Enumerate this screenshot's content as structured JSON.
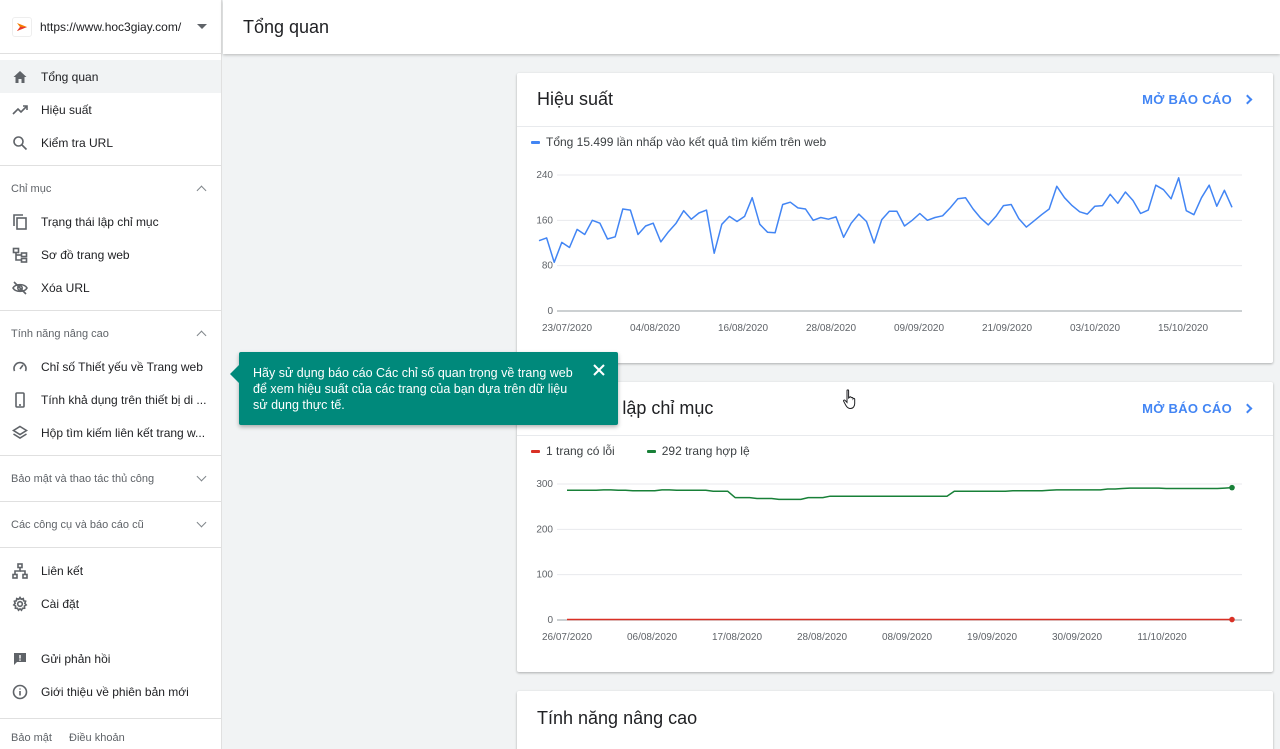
{
  "property": {
    "url": "https://www.hoc3giay.com/"
  },
  "header": {
    "title": "Tổng quan"
  },
  "sidebar": {
    "top_items": [
      {
        "label": "Tổng quan",
        "icon": "home-icon",
        "active": true
      },
      {
        "label": "Hiệu suất",
        "icon": "trending-up-icon"
      },
      {
        "label": "Kiểm tra URL",
        "icon": "search-icon"
      }
    ],
    "sections": {
      "index": "Chỉ mục",
      "enhancements": "Tính năng nâng cao",
      "security": "Bảo mật và thao tác thủ công",
      "legacy": "Các công cụ và báo cáo cũ"
    },
    "index_items": [
      {
        "label": "Trạng thái lập chỉ mục",
        "icon": "pages-icon"
      },
      {
        "label": "Sơ đồ trang web",
        "icon": "sitemap-icon"
      },
      {
        "label": "Xóa URL",
        "icon": "eye-off-icon"
      }
    ],
    "enhancement_items": [
      {
        "label": "Chỉ số Thiết yếu về Trang web",
        "icon": "speed-gauge-icon"
      },
      {
        "label": "Tính khả dụng trên thiết bị di ...",
        "icon": "smartphone-icon"
      },
      {
        "label": "Hộp tìm kiếm liên kết trang w...",
        "icon": "layers-icon"
      }
    ],
    "bottom_items": [
      {
        "label": "Liên kết",
        "icon": "links-icon"
      },
      {
        "label": "Cài đặt",
        "icon": "gear-icon"
      }
    ],
    "extra_items": [
      {
        "label": "Gửi phản hồi",
        "icon": "feedback-icon"
      },
      {
        "label": "Giới thiệu về phiên bản mới",
        "icon": "info-icon"
      }
    ],
    "footer": {
      "privacy": "Bảo mật",
      "terms": "Điều khoản"
    }
  },
  "tooltip": {
    "text": "Hãy sử dụng báo cáo Các chỉ số quan trọng về trang web để xem hiệu suất của các trang của bạn dựa trên dữ liệu sử dụng thực tế."
  },
  "cards": {
    "performance": {
      "title": "Hiệu suất",
      "open_label": "MỞ BÁO CÁO"
    },
    "coverage": {
      "title": "Trạng thái lập chỉ mục",
      "open_label": "MỞ BÁO CÁO"
    },
    "enhancements": {
      "title": "Tính năng nâng cao"
    }
  },
  "colors": {
    "accent": "#4285f4",
    "tooltip": "#00897b",
    "error": "#d93025",
    "valid": "#188038"
  },
  "chart_data": [
    {
      "type": "line",
      "series": [
        {
          "name": "Tổng 15.499 lần nhấp vào kết quả tìm kiếm trên web",
          "color": "#4285f4",
          "values": [
            124,
            129,
            86,
            121,
            112,
            144,
            135,
            160,
            155,
            127,
            131,
            180,
            178,
            135,
            150,
            155,
            122,
            140,
            155,
            177,
            162,
            173,
            178,
            102,
            153,
            167,
            158,
            167,
            200,
            153,
            139,
            138,
            188,
            192,
            182,
            180,
            160,
            165,
            162,
            166,
            130,
            155,
            171,
            158,
            120,
            161,
            176,
            176,
            150,
            160,
            172,
            160,
            165,
            168,
            182,
            198,
            200,
            180,
            164,
            152,
            167,
            186,
            188,
            163,
            148,
            159,
            170,
            180,
            220,
            200,
            186,
            175,
            171,
            185,
            186,
            206,
            190,
            210,
            195,
            172,
            178,
            222,
            214,
            198,
            235,
            177,
            170,
            200,
            222,
            185,
            213,
            183
          ]
        }
      ],
      "x_ticks": [
        "23/07/2020",
        "04/08/2020",
        "16/08/2020",
        "28/08/2020",
        "09/09/2020",
        "21/09/2020",
        "03/10/2020",
        "15/10/2020"
      ],
      "y_ticks": [
        0,
        80,
        160,
        240
      ],
      "ylim": [
        0,
        240
      ]
    },
    {
      "type": "line",
      "series": [
        {
          "name": "1 trang có lỗi",
          "color": "#d93025",
          "values": [
            1,
            1,
            1,
            1,
            1,
            1,
            1,
            1,
            1,
            1,
            1,
            1,
            1,
            1,
            1,
            1,
            1,
            1,
            1,
            1,
            1,
            1,
            1,
            1,
            1,
            1,
            1,
            1,
            1,
            1,
            1,
            1,
            1,
            1,
            1,
            1,
            1,
            1,
            1,
            1,
            1,
            1,
            1,
            1,
            1,
            1,
            1,
            1,
            1,
            1,
            1,
            1,
            1,
            1,
            1,
            1,
            1,
            1,
            1,
            1,
            1,
            1,
            1,
            1,
            1,
            1,
            1,
            1,
            1,
            1,
            1,
            1,
            1,
            1,
            1,
            1,
            1,
            1,
            1,
            1,
            1,
            1,
            1,
            1,
            1,
            1,
            1,
            1,
            1,
            1
          ]
        },
        {
          "name": "292 trang hợp lệ",
          "color": "#188038",
          "values": [
            286,
            286,
            286,
            286,
            286,
            287,
            287,
            286,
            286,
            285,
            285,
            285,
            285,
            287,
            287,
            286,
            286,
            286,
            286,
            286,
            284,
            284,
            284,
            270,
            270,
            270,
            268,
            268,
            268,
            266,
            266,
            266,
            266,
            270,
            270,
            270,
            273,
            273,
            273,
            273,
            273,
            273,
            273,
            273,
            273,
            273,
            273,
            273,
            273,
            273,
            273,
            273,
            273,
            284,
            284,
            284,
            284,
            284,
            284,
            284,
            284,
            285,
            285,
            285,
            285,
            285,
            286,
            287,
            287,
            287,
            287,
            287,
            287,
            287,
            289,
            289,
            290,
            291,
            291,
            291,
            291,
            291,
            290,
            290,
            290,
            290,
            290,
            290,
            290,
            290,
            291,
            292
          ]
        }
      ],
      "x_ticks": [
        "26/07/2020",
        "06/08/2020",
        "17/08/2020",
        "28/08/2020",
        "08/09/2020",
        "19/09/2020",
        "30/09/2020",
        "11/10/2020"
      ],
      "y_ticks": [
        0,
        100,
        200,
        300
      ],
      "ylim": [
        0,
        300
      ]
    }
  ]
}
